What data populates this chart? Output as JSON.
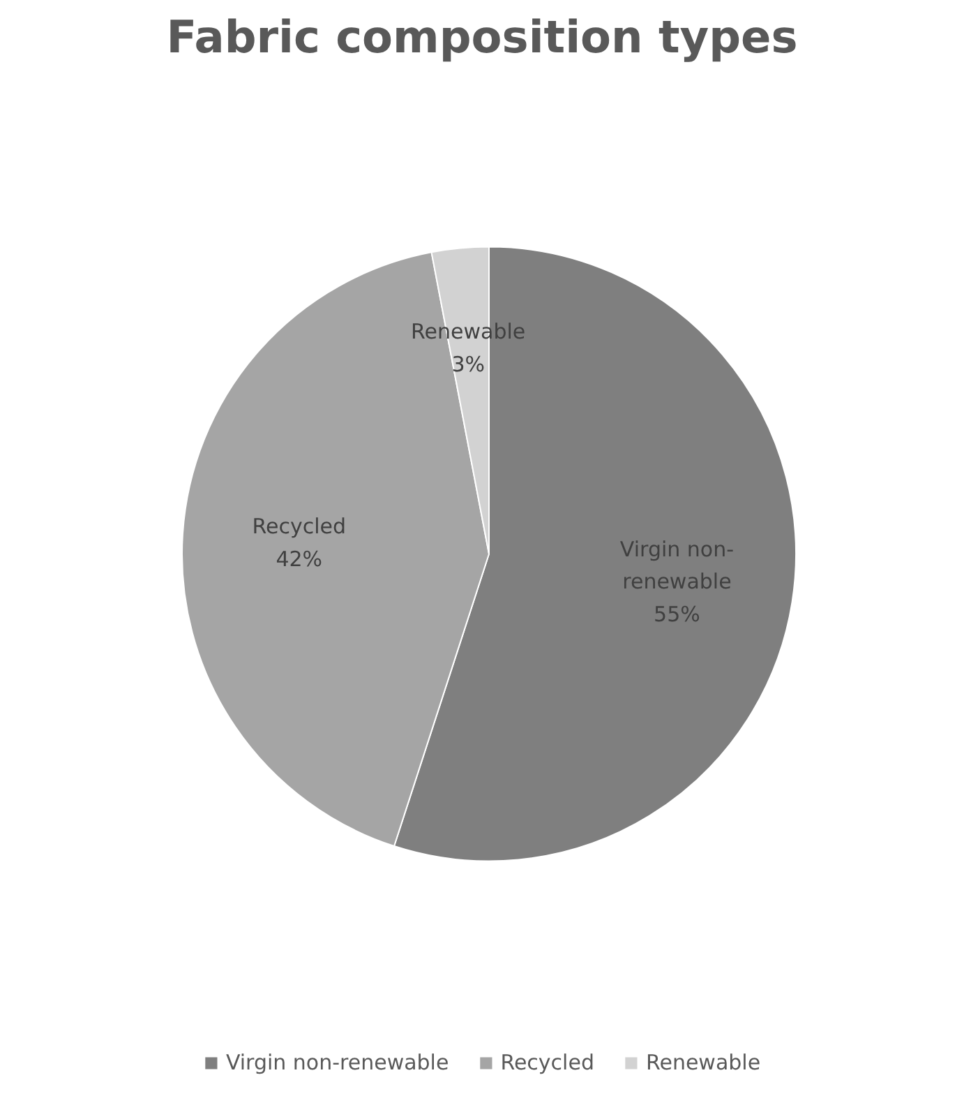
{
  "chart_data": {
    "type": "pie",
    "title": "Fabric composition types",
    "categories": [
      "Virgin non-renewable",
      "Recycled",
      "Renewable"
    ],
    "values": [
      55,
      42,
      3
    ],
    "colors": [
      "#7f7f7f",
      "#a5a5a5",
      "#d2d2d2"
    ],
    "value_labels": [
      "55%",
      "42%",
      "3%"
    ],
    "legend": "bottom"
  }
}
